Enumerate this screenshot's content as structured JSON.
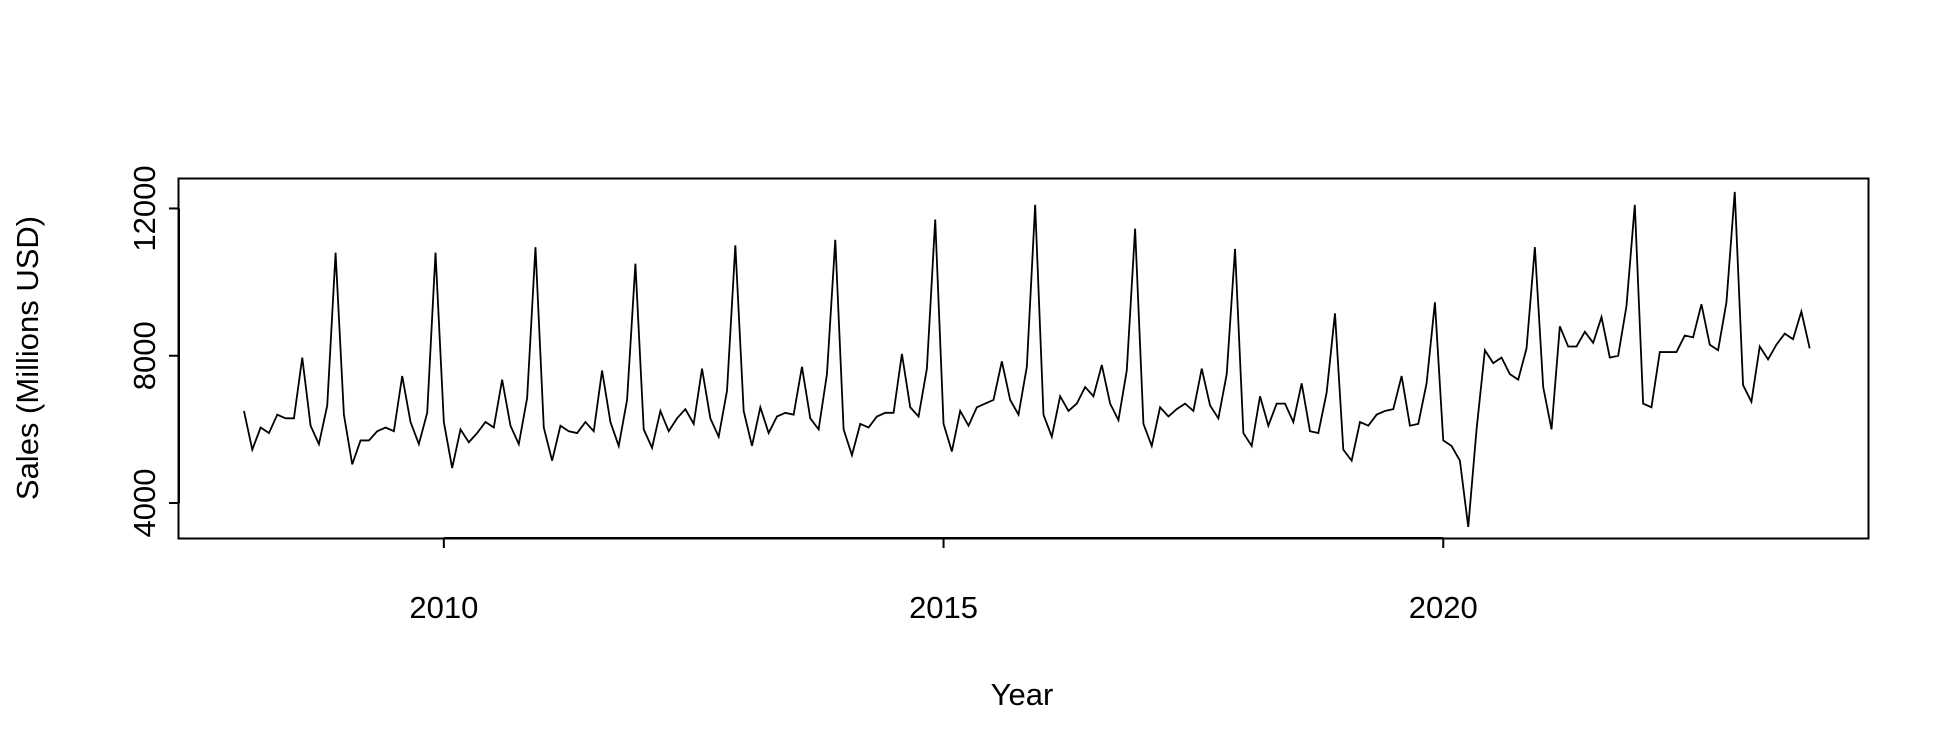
{
  "chart_data": {
    "type": "line",
    "title": "",
    "xlabel": "Year",
    "ylabel": "Sales (Millions USD)",
    "xlim": [
      2007.35,
      2024.25
    ],
    "ylim": [
      3050,
      12800
    ],
    "x_ticks": [
      2010,
      2015,
      2020
    ],
    "x_tick_labels": [
      "2010",
      "2015",
      "2020"
    ],
    "y_ticks": [
      4000,
      8000,
      12000
    ],
    "y_tick_labels": [
      "4000",
      "8000",
      "12000"
    ],
    "grid": false,
    "legend": "none",
    "line_color": "#000000",
    "series": [
      {
        "start": 2008.0,
        "frequency": 12,
        "values": [
          6500,
          5450,
          6050,
          5900,
          6400,
          6300,
          6300,
          7950,
          6100,
          5600,
          6650,
          10800,
          6400,
          5050,
          5700,
          5700,
          5950,
          6050,
          5950,
          7450,
          6200,
          5600,
          6450,
          10800,
          6200,
          4950,
          6000,
          5650,
          5900,
          6200,
          6050,
          7350,
          6100,
          5600,
          6850,
          10950,
          6050,
          5150,
          6100,
          5950,
          5900,
          6200,
          5950,
          7600,
          6200,
          5550,
          6800,
          10500,
          6000,
          5500,
          6500,
          5950,
          6300,
          6550,
          6150,
          7650,
          6300,
          5800,
          7050,
          11000,
          6500,
          5550,
          6600,
          5900,
          6350,
          6450,
          6400,
          7700,
          6300,
          6000,
          7500,
          11150,
          6000,
          5300,
          6150,
          6050,
          6350,
          6450,
          6450,
          8050,
          6600,
          6350,
          7650,
          11700,
          6150,
          5400,
          6500,
          6100,
          6600,
          6700,
          6800,
          7850,
          6800,
          6400,
          7700,
          12100,
          6400,
          5800,
          6900,
          6500,
          6700,
          7150,
          6900,
          7750,
          6700,
          6250,
          7600,
          11450,
          6150,
          5550,
          6600,
          6350,
          6550,
          6700,
          6500,
          7650,
          6650,
          6300,
          7500,
          10900,
          5900,
          5550,
          6900,
          6100,
          6700,
          6700,
          6200,
          7250,
          5950,
          5900,
          7000,
          9150,
          5450,
          5150,
          6200,
          6100,
          6400,
          6500,
          6550,
          7450,
          6100,
          6150,
          7250,
          9450,
          5700,
          5550,
          5150,
          3350,
          6000,
          8150,
          7800,
          7950,
          7500,
          7350,
          8200,
          10950,
          7150,
          6000,
          8800,
          8250,
          8250,
          8650,
          8350,
          9050,
          7950,
          8000,
          9350,
          12100,
          6700,
          6600,
          8100,
          8100,
          8100,
          8550,
          8500,
          9400,
          8300,
          8150,
          9450,
          12450,
          7200,
          6750,
          8250,
          7900,
          8300,
          8600,
          8450,
          9200,
          8200
        ]
      }
    ]
  }
}
